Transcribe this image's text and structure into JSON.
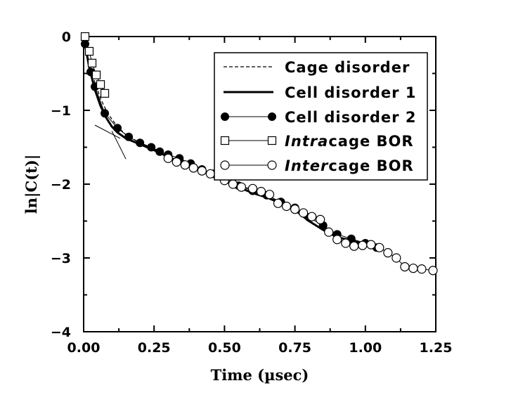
{
  "chart_data": {
    "type": "line",
    "title": "",
    "xlabel": "Time (µsec)",
    "ylabel": "ln|C(t)|",
    "xlim": [
      0,
      1.25
    ],
    "ylim": [
      -4,
      0
    ],
    "xticks": [
      0,
      0.25,
      0.5,
      0.75,
      1.0,
      1.25
    ],
    "xtick_labels": [
      "0.00",
      "0.25",
      "0.50",
      "0.75",
      "1.00",
      "1.25"
    ],
    "yticks": [
      0,
      -1,
      -2,
      -3,
      -4
    ],
    "ytick_labels": [
      "0",
      "−1",
      "−2",
      "−3",
      "−4"
    ],
    "grid": false,
    "legend_position": "top-right",
    "series": [
      {
        "name": "Cage disorder",
        "legend_label": {
          "prefix": "",
          "emph": "",
          "suffix": "Cage disorder"
        },
        "style": "dashed",
        "marker": "none",
        "x": [
          0.0,
          0.02,
          0.04,
          0.06,
          0.08,
          0.1,
          0.12,
          0.15,
          0.2,
          0.25,
          0.3,
          0.35,
          0.4
        ],
        "y": [
          0.0,
          -0.35,
          -0.62,
          -0.84,
          -1.0,
          -1.12,
          -1.22,
          -1.33,
          -1.44,
          -1.52,
          -1.6,
          -1.68,
          -1.76
        ]
      },
      {
        "name": "Cell disorder 1",
        "legend_label": {
          "prefix": "",
          "emph": "",
          "suffix": "Cell disorder 1"
        },
        "style": "solid-thick",
        "marker": "none",
        "x": [
          0.0,
          0.02,
          0.04,
          0.06,
          0.08,
          0.1,
          0.12,
          0.15,
          0.2,
          0.25,
          0.3,
          0.35,
          0.4,
          0.45,
          0.5,
          0.55,
          0.6,
          0.65,
          0.7,
          0.75,
          0.8,
          0.85,
          0.9,
          0.95,
          1.0,
          1.03
        ],
        "y": [
          0.0,
          -0.42,
          -0.72,
          -0.94,
          -1.1,
          -1.22,
          -1.3,
          -1.38,
          -1.46,
          -1.54,
          -1.63,
          -1.71,
          -1.79,
          -1.87,
          -1.96,
          -2.04,
          -2.12,
          -2.18,
          -2.26,
          -2.35,
          -2.5,
          -2.62,
          -2.72,
          -2.76,
          -2.82,
          -2.87
        ]
      },
      {
        "name": "Cell disorder 2",
        "legend_label": {
          "prefix": "",
          "emph": "",
          "suffix": "Cell disorder 2"
        },
        "style": "solid-thin",
        "marker": "filled-circle",
        "x": [
          0.005,
          0.025,
          0.04,
          0.075,
          0.12,
          0.16,
          0.2,
          0.24,
          0.27,
          0.3,
          0.34,
          0.38,
          0.42,
          0.46,
          0.5,
          0.55,
          0.6,
          0.65,
          0.7,
          0.75,
          0.8,
          0.85,
          0.9,
          0.95,
          1.0,
          1.04
        ],
        "y": [
          -0.1,
          -0.48,
          -0.68,
          -1.04,
          -1.24,
          -1.36,
          -1.44,
          -1.5,
          -1.56,
          -1.6,
          -1.65,
          -1.72,
          -1.8,
          -1.86,
          -1.93,
          -2.02,
          -2.09,
          -2.15,
          -2.24,
          -2.32,
          -2.45,
          -2.56,
          -2.68,
          -2.74,
          -2.8,
          -2.86
        ]
      },
      {
        "name": "Intracage BOR",
        "legend_label": {
          "prefix": "",
          "emph": "Intra",
          "suffix": "cage BOR"
        },
        "style": "solid-thin",
        "marker": "open-square",
        "x": [
          0.005,
          0.02,
          0.03,
          0.045,
          0.06,
          0.075
        ],
        "y": [
          0.0,
          -0.2,
          -0.36,
          -0.52,
          -0.65,
          -0.77
        ]
      },
      {
        "name": "Intercage BOR",
        "legend_label": {
          "prefix": "",
          "emph": "Inter",
          "suffix": "cage BOR"
        },
        "style": "solid-thin",
        "marker": "open-circle",
        "x": [
          0.3,
          0.33,
          0.36,
          0.39,
          0.42,
          0.45,
          0.5,
          0.53,
          0.56,
          0.6,
          0.63,
          0.66,
          0.69,
          0.72,
          0.75,
          0.78,
          0.81,
          0.84,
          0.87,
          0.9,
          0.93,
          0.96,
          0.99,
          1.02,
          1.05,
          1.08,
          1.11,
          1.14,
          1.17,
          1.2,
          1.24
        ],
        "y": [
          -1.65,
          -1.7,
          -1.74,
          -1.78,
          -1.82,
          -1.86,
          -1.95,
          -2.0,
          -2.04,
          -2.06,
          -2.1,
          -2.14,
          -2.26,
          -2.3,
          -2.34,
          -2.39,
          -2.44,
          -2.48,
          -2.65,
          -2.75,
          -2.8,
          -2.84,
          -2.83,
          -2.82,
          -2.86,
          -2.93,
          -3.0,
          -3.12,
          -3.14,
          -3.15,
          -3.17
        ]
      }
    ],
    "annotations": [
      {
        "type": "tangent-line",
        "x": [
          0.04,
          0.13
        ],
        "y": [
          -1.2,
          -1.38
        ]
      },
      {
        "type": "tangent-line",
        "x": [
          0.1,
          0.15
        ],
        "y": [
          -1.28,
          -1.66
        ]
      }
    ]
  }
}
